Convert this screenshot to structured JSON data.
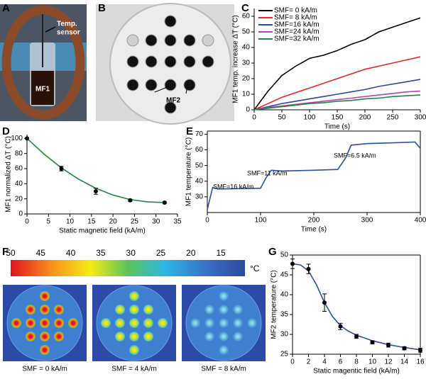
{
  "figure": {
    "panels": [
      "A",
      "B",
      "C",
      "D",
      "E",
      "F",
      "G"
    ],
    "a_labels": [
      "Temp.",
      "sensor",
      "MF1"
    ],
    "b_label": "MF2",
    "f_colorbar": {
      "ticks": [
        50,
        45,
        40,
        35,
        30,
        25,
        20,
        15
      ],
      "lim": [
        50,
        11
      ],
      "unit": "°C"
    },
    "f_captions": [
      "SMF = 0 kA/m",
      "SMF = 4 kA/m",
      "SMF = 8 kA/m"
    ]
  },
  "chart_data": [
    {
      "type": "line",
      "xlabel": "Time (s)",
      "ylabel": "MF1 temp. increase ΔT (°C)",
      "x": [
        0,
        25,
        50,
        75,
        100,
        125,
        150,
        175,
        200,
        225,
        250,
        275,
        300
      ],
      "series": [
        {
          "name": "SMF= 0 kA/m",
          "color": "#000000",
          "values": [
            0,
            12,
            22,
            28,
            33,
            35,
            38,
            42,
            45,
            50,
            53,
            56,
            59
          ]
        },
        {
          "name": "SMF= 8 kA/m",
          "color": "#e8242a",
          "values": [
            0,
            4,
            8,
            11,
            14,
            17,
            20,
            23,
            26,
            28,
            30,
            32,
            34
          ]
        },
        {
          "name": "SMF=16 kA/m",
          "color": "#2e4aa0",
          "values": [
            0,
            2,
            4,
            5.5,
            7,
            8.5,
            10,
            11.5,
            13,
            15,
            16.5,
            18,
            19.5
          ]
        },
        {
          "name": "SMF=24 kA/m",
          "color": "#c23fb0",
          "values": [
            0,
            1.5,
            2.5,
            3.5,
            4.5,
            5.5,
            6.5,
            7.5,
            8.5,
            9.5,
            10.5,
            11.5,
            12
          ]
        },
        {
          "name": "SMF=32 kA/m",
          "color": "#1a8a3a",
          "values": [
            0,
            1,
            2,
            3,
            4,
            4.5,
            5.5,
            6,
            7,
            7.5,
            8.5,
            9,
            9.5
          ]
        }
      ],
      "xlim": [
        0,
        300
      ],
      "xticks": [
        0,
        50,
        100,
        150,
        200,
        250,
        300
      ],
      "ylim": [
        0,
        65
      ],
      "yticks": [
        0,
        10,
        20,
        30,
        40,
        50,
        60
      ],
      "legend": "upper left",
      "frame": false
    },
    {
      "type": "scatter",
      "xlabel": "Static magnetic field (kA/m)",
      "ylabel": "MF1 normalized ΔT (°C)",
      "x": [
        0,
        8,
        16,
        24,
        32
      ],
      "values": [
        100,
        60,
        30,
        18,
        15
      ],
      "errors": [
        0,
        3,
        4,
        1.5,
        1
      ],
      "color": "#000000",
      "fit": {
        "color": "#1f8a3c",
        "x": [
          0,
          4,
          8,
          12,
          16,
          20,
          24,
          28,
          32
        ],
        "values": [
          100,
          79,
          61,
          46,
          34,
          25,
          19,
          16,
          15
        ]
      },
      "xlim": [
        0,
        35
      ],
      "xticks": [
        0,
        5,
        10,
        15,
        20,
        25,
        30,
        35
      ],
      "ylim": [
        0,
        105
      ],
      "yticks": [
        0,
        20,
        40,
        60,
        80,
        100
      ],
      "frame": false
    },
    {
      "type": "line",
      "xlabel": "Time (s)",
      "ylabel": "MF1 temperature (°C)",
      "x": [
        0,
        10,
        20,
        100,
        110,
        120,
        140,
        200,
        245,
        260,
        270,
        300,
        350,
        390,
        395,
        400
      ],
      "series": [
        {
          "name": null,
          "color": "#2c50a8",
          "values": [
            22,
            36,
            35,
            35.5,
            42,
            47,
            46.5,
            47,
            47.5,
            55,
            63,
            64,
            64.5,
            65,
            63,
            61
          ]
        }
      ],
      "annotations": [
        "SMF=16 kA/m",
        "SMF=11 kA/m",
        "SMF=6.5 kA/m"
      ],
      "xlim": [
        0,
        400
      ],
      "xticks": [
        0,
        100,
        200,
        300,
        400
      ],
      "ylim": [
        20,
        72
      ],
      "yticks": [
        30,
        40,
        50,
        60,
        70
      ],
      "frame": true
    },
    {
      "type": "scatter",
      "xlabel": "Static magentic field (kA/m)",
      "ylabel": "MF2 temperature (°C)",
      "x": [
        0,
        2,
        4,
        6,
        8,
        10,
        12,
        14,
        16
      ],
      "values": [
        47.8,
        46.5,
        38,
        32,
        29.5,
        28,
        27.3,
        26.5,
        26
      ],
      "errors": [
        1.2,
        1.2,
        2.2,
        0.8,
        0.5,
        0.4,
        0.5,
        0.4,
        0.5
      ],
      "color": "#000000",
      "fit": {
        "color": "#2c50a8",
        "x": [
          0,
          1,
          2,
          3,
          4,
          5,
          6,
          7,
          8,
          10,
          12,
          14,
          16
        ],
        "values": [
          47.8,
          47.5,
          46,
          42.5,
          38,
          34.5,
          32.2,
          30.8,
          29.8,
          28.4,
          27.4,
          26.7,
          26.1
        ]
      },
      "xlim": [
        0,
        16
      ],
      "xticks": [
        0,
        2,
        4,
        6,
        8,
        10,
        12,
        14,
        16
      ],
      "ylim": [
        25,
        50
      ],
      "yticks": [
        25,
        30,
        35,
        40,
        45,
        50
      ],
      "frame": true
    }
  ]
}
